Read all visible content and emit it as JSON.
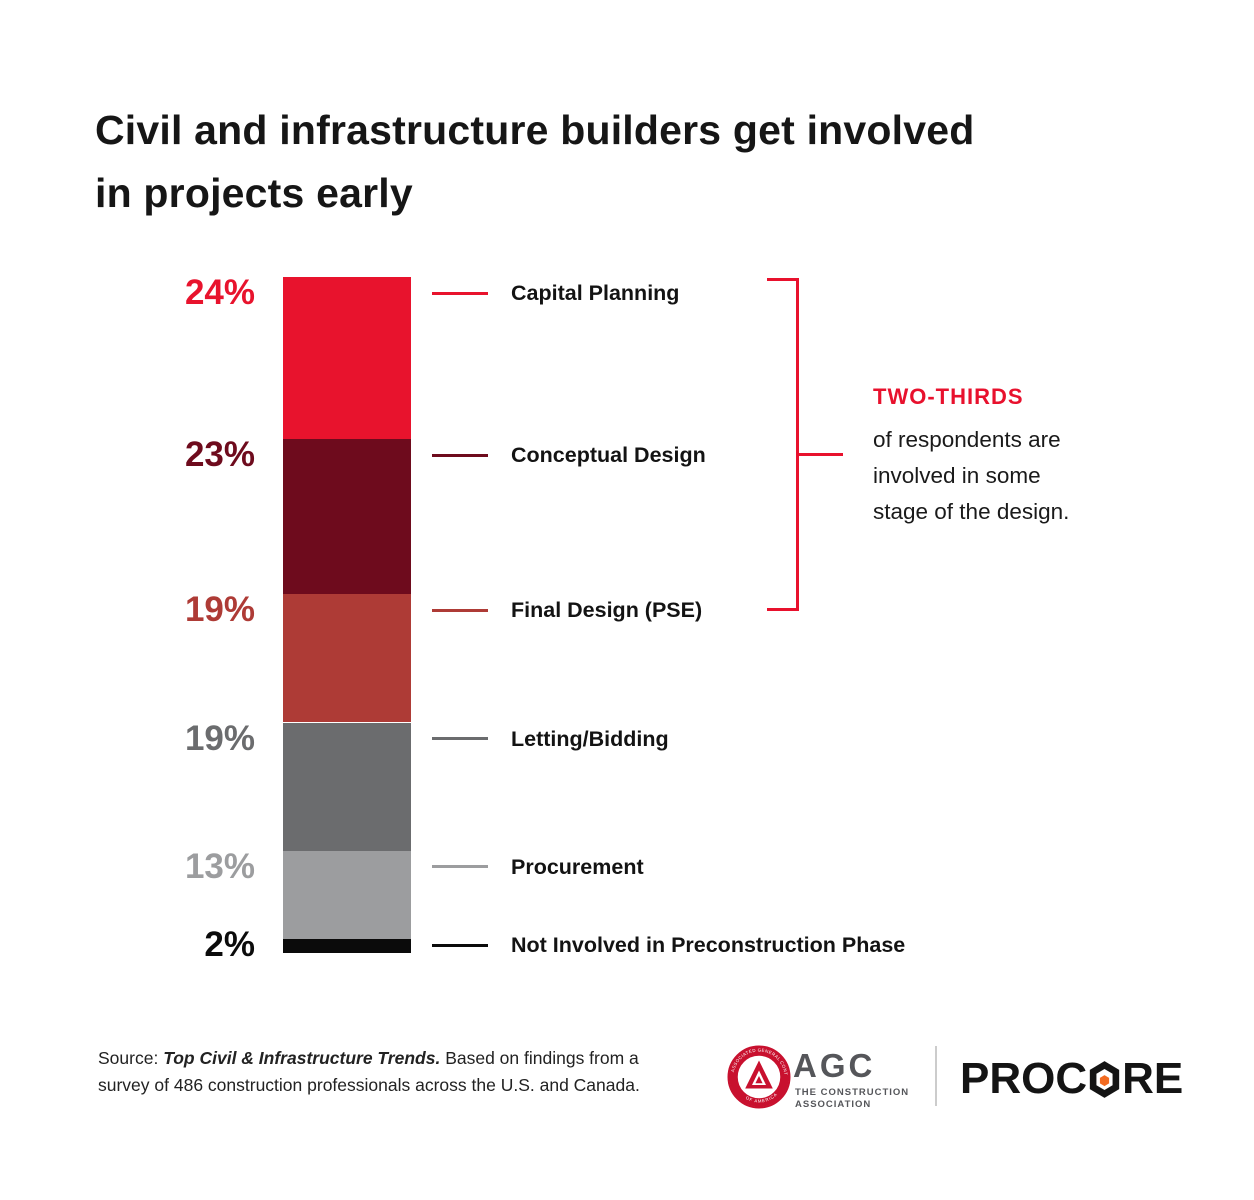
{
  "title": "Civil and infrastructure builders get involved in projects early",
  "chart_data": {
    "type": "bar",
    "subtype": "single-stacked-column",
    "unit": "%",
    "total": 100,
    "segments": [
      {
        "label": "Capital Planning",
        "value": 24,
        "display": "24%",
        "color": "#e8132d"
      },
      {
        "label": "Conceptual Design",
        "value": 23,
        "display": "23%",
        "color": "#6e0b1d"
      },
      {
        "label": "Final Design (PSE)",
        "value": 19,
        "display": "19%",
        "color": "#ae3b36"
      },
      {
        "label": "Letting/Bidding",
        "value": 19,
        "display": "19%",
        "color": "#6b6c6e"
      },
      {
        "label": "Procurement",
        "value": 13,
        "display": "13%",
        "color": "#9c9d9f"
      },
      {
        "label": "Not Involved in Preconstruction Phase",
        "value": 2,
        "display": "2%",
        "color": "#0b0b0b"
      }
    ],
    "annotation": {
      "highlight": "TWO-THIRDS",
      "body": "of respondents are involved in some stage of the design.",
      "accent_color": "#e8112d",
      "bracket_spans_segments": [
        "Capital Planning",
        "Conceptual Design",
        "Final Design (PSE)"
      ]
    }
  },
  "footer": {
    "source_prefix": "Source: ",
    "source_title": "Top Civil & Infrastructure Trends.",
    "source_body": " Based on findings from a survey of 486 construction professionals across the U.S. and Canada."
  },
  "logos": {
    "agc": {
      "wordmark": "AGC",
      "tagline_line1": "THE CONSTRUCTION",
      "tagline_line2": "ASSOCIATION",
      "seal_top_text": "ASSOCIATED GENERAL CONTRACTORS",
      "seal_bottom_text": "OF AMERICA"
    },
    "procore": {
      "text_before_o": "PROC",
      "text_after_o": "RE",
      "accent_color": "#f26b21"
    }
  }
}
